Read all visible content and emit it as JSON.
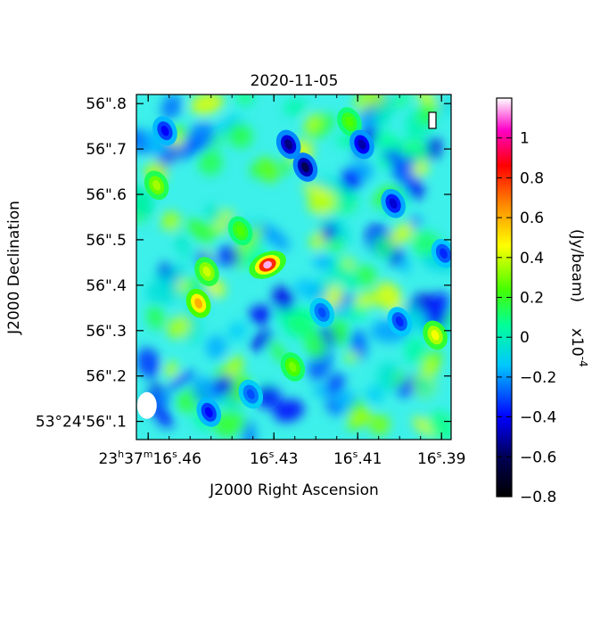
{
  "chart_data": {
    "type": "heatmap",
    "title": "2020-11-05",
    "stokes_label": "I",
    "xlabel": "J2000 Right Ascension",
    "ylabel": "J2000 Declination",
    "x_ticks": [
      {
        "label": "23h37m16s.46",
        "value": 16.46
      },
      {
        "label": "16s.43",
        "value": 16.43
      },
      {
        "label": "16s.41",
        "value": 16.41
      },
      {
        "label": "16s.39",
        "value": 16.39
      }
    ],
    "x_tick_text": {
      "t0_main": "23",
      "t0_h": "h",
      "t0_mid": "37",
      "t0_m": "m",
      "t0_sec": "16",
      "t0_s": "s",
      "t0_frac": ".46",
      "t1_sec": "16",
      "t1_s": "s",
      "t1_frac": ".43",
      "t2_sec": "16",
      "t2_s": "s",
      "t2_frac": ".41",
      "t3_sec": "16",
      "t3_s": "s",
      "t3_frac": ".39"
    },
    "y_ticks": [
      {
        "label": "53°24'56\".1",
        "value": 56.1
      },
      {
        "label": "56\".2",
        "value": 56.2
      },
      {
        "label": "56\".3",
        "value": 56.3
      },
      {
        "label": "56\".4",
        "value": 56.4
      },
      {
        "label": "56\".5",
        "value": 56.5
      },
      {
        "label": "56\".6",
        "value": 56.6
      },
      {
        "label": "56\".7",
        "value": 56.7
      },
      {
        "label": "56\".8",
        "value": 56.8
      }
    ],
    "xlim": [
      16.4628,
      16.3877
    ],
    "ylim": [
      56.06,
      56.82
    ],
    "colorbar": {
      "label": "(Jy/beam)",
      "scale_label": "x10",
      "scale_exponent": "-4",
      "range": [
        -0.8,
        1.2
      ],
      "ticks": [
        "-0.8",
        "-0.6",
        "-0.4",
        "-0.2",
        "0",
        "0.2",
        "0.4",
        "0.6",
        "0.8",
        "1"
      ],
      "tick_values": [
        -0.8,
        -0.6,
        -0.4,
        -0.2,
        0,
        0.2,
        0.4,
        0.6,
        0.8,
        1.0
      ]
    },
    "beam": {
      "ra": 16.4603,
      "dec": 56.135
    },
    "peak": {
      "ra": 16.4315,
      "dec": 56.445,
      "value": 1.18
    },
    "features": [
      {
        "ra": 16.4315,
        "dec": 56.445,
        "value": 1.1
      },
      {
        "ra": 16.448,
        "dec": 56.36,
        "value": 0.6
      },
      {
        "ra": 16.3915,
        "dec": 56.29,
        "value": 0.45
      },
      {
        "ra": 16.458,
        "dec": 56.62,
        "value": 0.35
      },
      {
        "ra": 16.446,
        "dec": 56.43,
        "value": 0.4
      },
      {
        "ra": 16.4255,
        "dec": 56.22,
        "value": 0.3
      },
      {
        "ra": 16.438,
        "dec": 56.52,
        "value": 0.25
      },
      {
        "ra": 16.412,
        "dec": 56.76,
        "value": 0.25
      },
      {
        "ra": 16.4225,
        "dec": 56.66,
        "value": -0.6
      },
      {
        "ra": 16.4265,
        "dec": 56.71,
        "value": -0.55
      },
      {
        "ra": 16.409,
        "dec": 56.71,
        "value": -0.5
      },
      {
        "ra": 16.4015,
        "dec": 56.58,
        "value": -0.45
      },
      {
        "ra": 16.456,
        "dec": 56.74,
        "value": -0.4
      },
      {
        "ra": 16.4455,
        "dec": 56.12,
        "value": -0.4
      },
      {
        "ra": 16.4,
        "dec": 56.32,
        "value": -0.35
      },
      {
        "ra": 16.3895,
        "dec": 56.47,
        "value": -0.35
      },
      {
        "ra": 16.4185,
        "dec": 56.34,
        "value": -0.3
      },
      {
        "ra": 16.4355,
        "dec": 56.16,
        "value": -0.3
      }
    ]
  }
}
